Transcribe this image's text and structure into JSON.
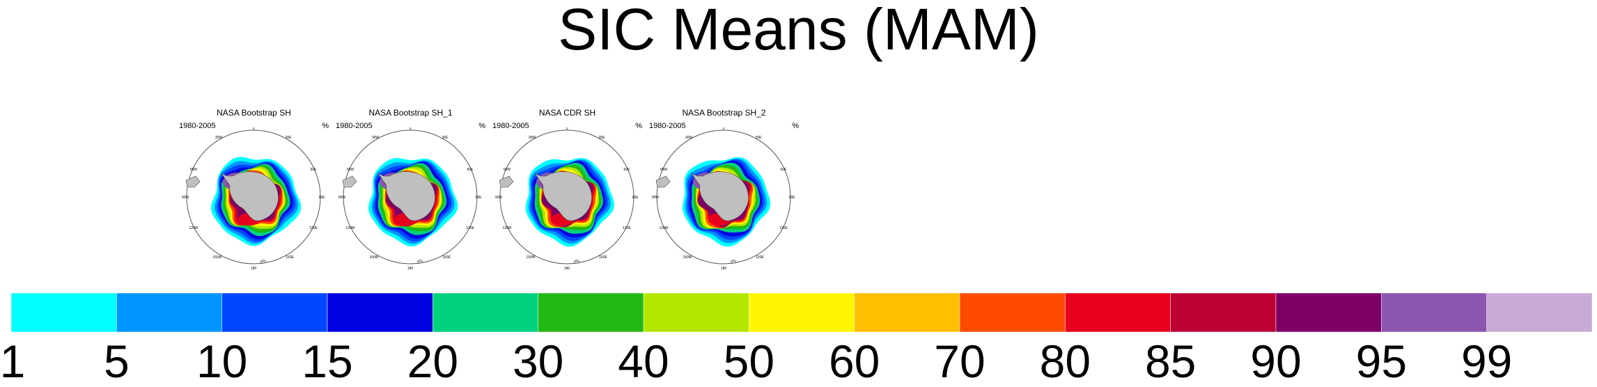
{
  "title": "SIC Means (MAM)",
  "colors": {
    "land": "#bfbfbf",
    "ocean": "#ffffff",
    "circle": "#555555"
  },
  "panels": [
    {
      "title": "NASA Bootstrap SH",
      "period": "1980-2005",
      "unit": "%"
    },
    {
      "title": "NASA Bootstrap SH_1",
      "period": "1980-2005",
      "unit": "%"
    },
    {
      "title": "NASA CDR SH",
      "period": "1980-2005",
      "unit": "%"
    },
    {
      "title": "NASA Bootstrap SH_2",
      "period": "1980-2005",
      "unit": "%"
    }
  ],
  "map_labels": {
    "top": "0",
    "top_left": "30W",
    "top_right": "30E",
    "left_upper": "60W",
    "right_upper": "60E",
    "left": "90W",
    "right": "90E",
    "left_lower": "120W",
    "right_lower": "120E",
    "bottom_left": "150W",
    "bottom_right": "150E",
    "bottom": "180"
  },
  "colorbar": {
    "boundaries": [
      "1",
      "5",
      "10",
      "15",
      "20",
      "30",
      "40",
      "50",
      "60",
      "70",
      "80",
      "85",
      "90",
      "95",
      "99"
    ],
    "colors": [
      "#00ffff",
      "#0096ff",
      "#0046ff",
      "#0000e1",
      "#00d27d",
      "#23b914",
      "#b4e600",
      "#fff500",
      "#ffbe00",
      "#ff4b00",
      "#e6001e",
      "#be0032",
      "#7d0064",
      "#8c55af",
      "#c8aad7"
    ]
  }
}
